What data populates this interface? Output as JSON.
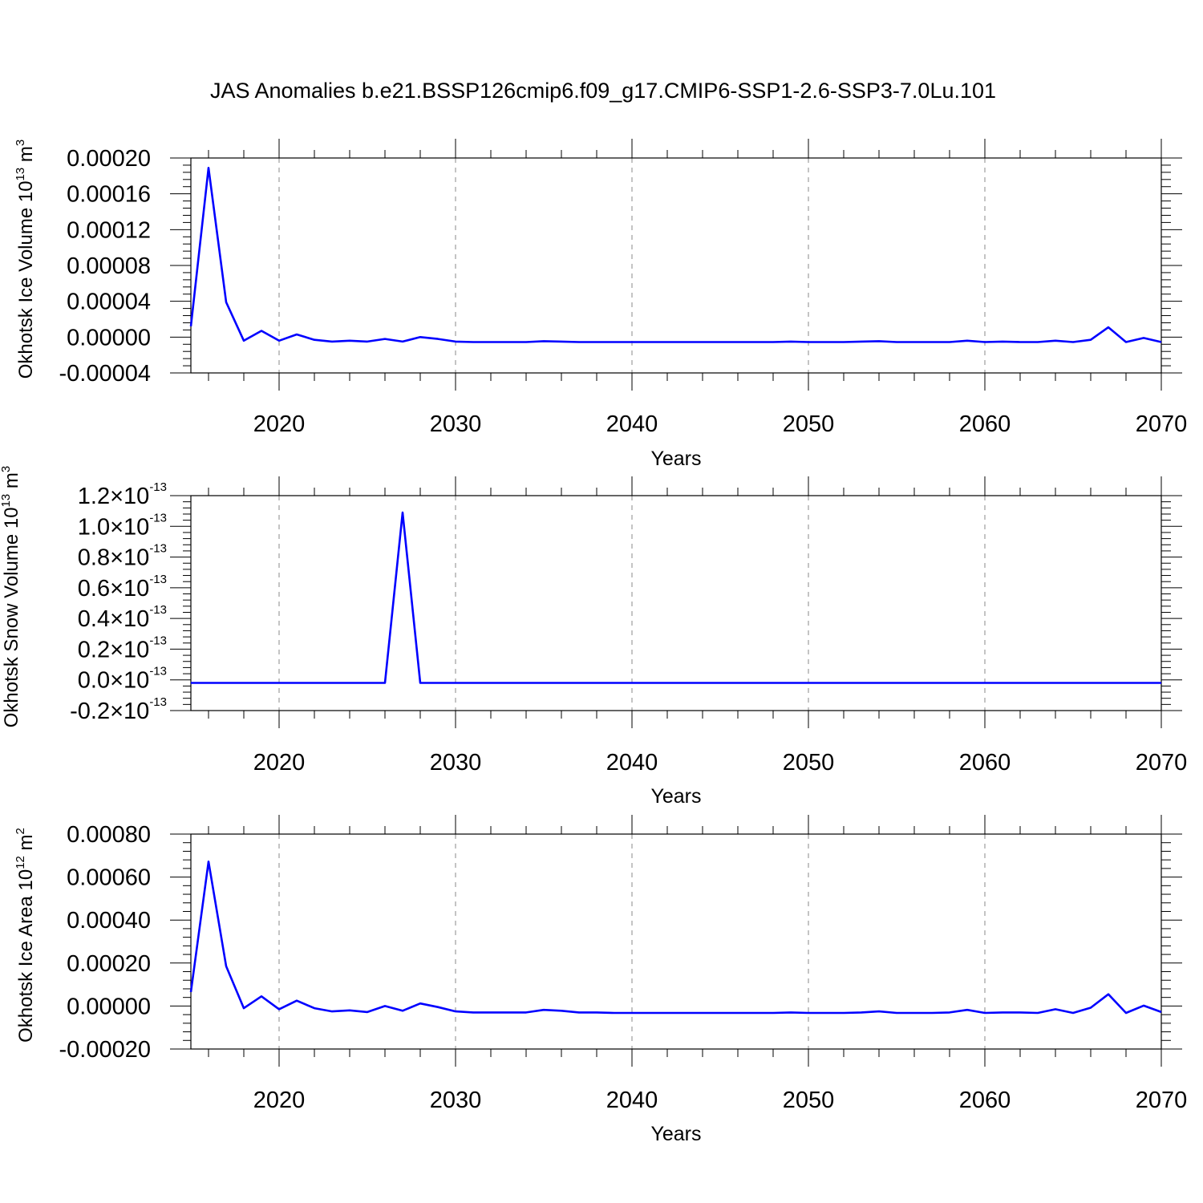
{
  "title": "JAS Anomalies b.e21.BSSP126cmip6.f09_g17.CMIP6-SSP1-2.6-SSP3-7.0Lu.101",
  "colors": {
    "line": "#0000ff",
    "grid": "#888888",
    "axes": "#000000"
  },
  "chart_data": [
    {
      "type": "line",
      "title": "",
      "xlabel": "Years",
      "ylabel": "Okhotsk Ice Volume 10^13 m^3",
      "ylabel_parts": {
        "pre": "Okhotsk Ice Volume 10",
        "exp": "13",
        "unit": " m",
        "unit_exp": "3"
      },
      "xlim": [
        2015,
        2070
      ],
      "ylim": [
        -4e-05,
        0.0002
      ],
      "xticks": [
        2020,
        2030,
        2040,
        2050,
        2060,
        2070
      ],
      "yticks": [
        -4e-05,
        0.0,
        4e-05,
        8e-05,
        0.00012,
        0.00016,
        0.0002
      ],
      "ytick_labels": [
        "-0.00004",
        "0.00000",
        "0.00004",
        "0.00008",
        "0.00012",
        "0.00016",
        "0.00020"
      ],
      "ytick_format": "plain",
      "grid": "vertical dashed",
      "x": [
        2015,
        2016,
        2017,
        2018,
        2019,
        2020,
        2021,
        2022,
        2023,
        2024,
        2025,
        2026,
        2027,
        2028,
        2029,
        2030,
        2031,
        2032,
        2033,
        2034,
        2035,
        2036,
        2037,
        2038,
        2039,
        2040,
        2041,
        2042,
        2043,
        2044,
        2045,
        2046,
        2047,
        2048,
        2049,
        2050,
        2051,
        2052,
        2053,
        2054,
        2055,
        2056,
        2057,
        2058,
        2059,
        2060,
        2061,
        2062,
        2063,
        2064,
        2065,
        2066,
        2067,
        2068,
        2069,
        2070
      ],
      "series": [
        {
          "values": [
            1.2e-05,
            0.000189,
            3.9e-05,
            -4e-06,
            7e-06,
            -4e-06,
            3e-06,
            -3e-06,
            -5e-06,
            -4e-06,
            -5e-06,
            -2e-06,
            -5e-06,
            0.0,
            -2e-06,
            -5e-06,
            -5.5e-06,
            -5.5e-06,
            -5.5e-06,
            -5.5e-06,
            -4.5e-06,
            -5e-06,
            -5.5e-06,
            -5.5e-06,
            -5.5e-06,
            -5.5e-06,
            -5.5e-06,
            -5.5e-06,
            -5.5e-06,
            -5.5e-06,
            -5.5e-06,
            -5.5e-06,
            -5.5e-06,
            -5.5e-06,
            -5e-06,
            -5.5e-06,
            -5.5e-06,
            -5.5e-06,
            -5e-06,
            -4.5e-06,
            -5.5e-06,
            -5.5e-06,
            -5.5e-06,
            -5.5e-06,
            -4e-06,
            -5.5e-06,
            -5e-06,
            -5.5e-06,
            -5.5e-06,
            -4e-06,
            -5.5e-06,
            -3e-06,
            1.1e-05,
            -5.5e-06,
            -1e-06,
            -5.5e-06
          ]
        }
      ]
    },
    {
      "type": "line",
      "title": "",
      "xlabel": "Years",
      "ylabel": "Okhotsk Snow Volume 10^13 m^3",
      "ylabel_parts": {
        "pre": "Okhotsk Snow Volume 10",
        "exp": "13",
        "unit": " m",
        "unit_exp": "3"
      },
      "xlim": [
        2015,
        2070
      ],
      "ylim": [
        -2e-14,
        1.2e-13
      ],
      "xticks": [
        2020,
        2030,
        2040,
        2050,
        2060,
        2070
      ],
      "yticks": [
        -2e-14,
        0.0,
        2e-14,
        4e-14,
        6e-14,
        8e-14,
        1e-13,
        1.2e-13
      ],
      "ytick_labels": [
        "-0.2",
        "0.0",
        "0.2",
        "0.4",
        "0.6",
        "0.8",
        "1.0",
        "1.2"
      ],
      "ytick_suffix": "×10",
      "ytick_exp": "-13",
      "ytick_format": "sci",
      "grid": "vertical dashed",
      "x": [
        2015,
        2016,
        2017,
        2018,
        2019,
        2020,
        2021,
        2022,
        2023,
        2024,
        2025,
        2026,
        2027,
        2028,
        2029,
        2030,
        2031,
        2032,
        2033,
        2034,
        2035,
        2036,
        2037,
        2038,
        2039,
        2040,
        2041,
        2042,
        2043,
        2044,
        2045,
        2046,
        2047,
        2048,
        2049,
        2050,
        2051,
        2052,
        2053,
        2054,
        2055,
        2056,
        2057,
        2058,
        2059,
        2060,
        2061,
        2062,
        2063,
        2064,
        2065,
        2066,
        2067,
        2068,
        2069,
        2070
      ],
      "series": [
        {
          "values": [
            -2e-15,
            -2e-15,
            -2e-15,
            -2e-15,
            -2e-15,
            -2e-15,
            -2e-15,
            -2e-15,
            -2e-15,
            -2e-15,
            -2e-15,
            -2e-15,
            1.09e-13,
            -2e-15,
            -2e-15,
            -2e-15,
            -2e-15,
            -2e-15,
            -2e-15,
            -2e-15,
            -2e-15,
            -2e-15,
            -2e-15,
            -2e-15,
            -2e-15,
            -2e-15,
            -2e-15,
            -2e-15,
            -2e-15,
            -2e-15,
            -2e-15,
            -2e-15,
            -2e-15,
            -2e-15,
            -2e-15,
            -2e-15,
            -2e-15,
            -2e-15,
            -2e-15,
            -2e-15,
            -2e-15,
            -2e-15,
            -2e-15,
            -2e-15,
            -2e-15,
            -2e-15,
            -2e-15,
            -2e-15,
            -2e-15,
            -2e-15,
            -2e-15,
            -2e-15,
            -2e-15,
            -2e-15,
            -2e-15,
            -2e-15
          ]
        }
      ]
    },
    {
      "type": "line",
      "title": "",
      "xlabel": "Years",
      "ylabel": "Okhotsk Ice Area 10^12 m^2",
      "ylabel_parts": {
        "pre": "Okhotsk Ice Area 10",
        "exp": "12",
        "unit": " m",
        "unit_exp": "2"
      },
      "xlim": [
        2015,
        2070
      ],
      "ylim": [
        -0.0002,
        0.0008
      ],
      "xticks": [
        2020,
        2030,
        2040,
        2050,
        2060,
        2070
      ],
      "yticks": [
        -0.0002,
        0.0,
        0.0002,
        0.0004,
        0.0006,
        0.0008
      ],
      "ytick_labels": [
        "-0.00020",
        "0.00000",
        "0.00020",
        "0.00040",
        "0.00060",
        "0.00080"
      ],
      "ytick_format": "plain",
      "grid": "vertical dashed",
      "x": [
        2015,
        2016,
        2017,
        2018,
        2019,
        2020,
        2021,
        2022,
        2023,
        2024,
        2025,
        2026,
        2027,
        2028,
        2029,
        2030,
        2031,
        2032,
        2033,
        2034,
        2035,
        2036,
        2037,
        2038,
        2039,
        2040,
        2041,
        2042,
        2043,
        2044,
        2045,
        2046,
        2047,
        2048,
        2049,
        2050,
        2051,
        2052,
        2053,
        2054,
        2055,
        2056,
        2057,
        2058,
        2059,
        2060,
        2061,
        2062,
        2063,
        2064,
        2065,
        2066,
        2067,
        2068,
        2069,
        2070
      ],
      "series": [
        {
          "values": [
            6.5e-05,
            0.000672,
            0.000185,
            -1e-05,
            4.5e-05,
            -1.5e-05,
            2.5e-05,
            -1e-05,
            -2.5e-05,
            -2e-05,
            -2.8e-05,
            0.0,
            -2.2e-05,
            1.2e-05,
            -5e-06,
            -2.5e-05,
            -3e-05,
            -3e-05,
            -3e-05,
            -3e-05,
            -1.8e-05,
            -2.2e-05,
            -3e-05,
            -3e-05,
            -3.2e-05,
            -3.2e-05,
            -3.2e-05,
            -3.2e-05,
            -3.2e-05,
            -3.2e-05,
            -3.2e-05,
            -3.2e-05,
            -3.2e-05,
            -3.2e-05,
            -3e-05,
            -3.2e-05,
            -3.2e-05,
            -3.2e-05,
            -3e-05,
            -2.5e-05,
            -3.2e-05,
            -3.2e-05,
            -3.2e-05,
            -3e-05,
            -1.8e-05,
            -3.2e-05,
            -3e-05,
            -3e-05,
            -3.2e-05,
            -1.5e-05,
            -3.2e-05,
            -8e-06,
            5.5e-05,
            -3.2e-05,
            2e-06,
            -2.8e-05
          ]
        }
      ]
    }
  ]
}
